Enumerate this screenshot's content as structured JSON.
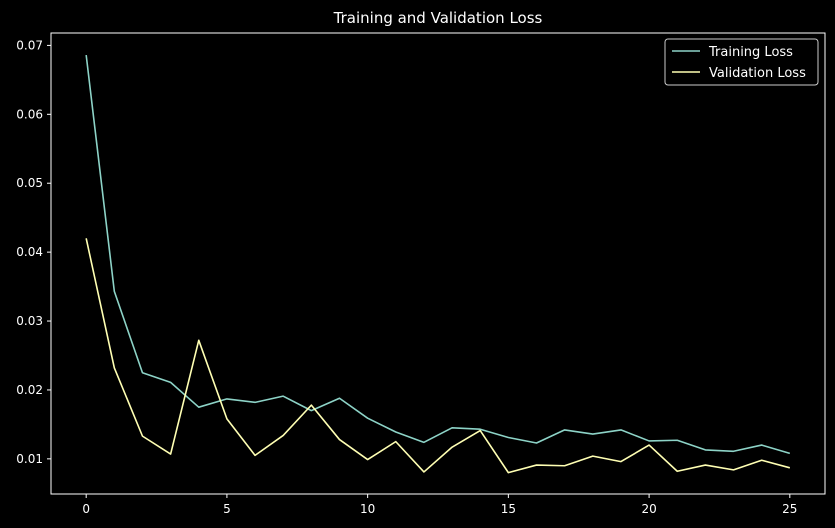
{
  "chart_data": {
    "type": "line",
    "title": "Training and Validation Loss",
    "xlabel": "",
    "ylabel": "",
    "xlim": [
      -1.25,
      26.25
    ],
    "ylim": [
      0.0049,
      0.0718
    ],
    "xticks": [
      0,
      5,
      10,
      15,
      20,
      25
    ],
    "yticks": [
      0.01,
      0.02,
      0.03,
      0.04,
      0.05,
      0.06,
      0.07
    ],
    "grid": false,
    "legend": "top-right",
    "x": [
      0,
      1,
      2,
      3,
      4,
      5,
      6,
      7,
      8,
      9,
      10,
      11,
      12,
      13,
      14,
      15,
      16,
      17,
      18,
      19,
      20,
      21,
      22,
      23,
      24,
      25
    ],
    "series": [
      {
        "name": "Training Loss",
        "color": "#8dd3c7",
        "values": [
          0.0686,
          0.0343,
          0.0225,
          0.0211,
          0.0175,
          0.0187,
          0.0182,
          0.0191,
          0.017,
          0.0188,
          0.0159,
          0.0139,
          0.0124,
          0.0145,
          0.0143,
          0.0131,
          0.0123,
          0.0142,
          0.0136,
          0.0142,
          0.0126,
          0.0127,
          0.0113,
          0.0111,
          0.012,
          0.0108
        ]
      },
      {
        "name": "Validation Loss",
        "color": "#ffffb3",
        "values": [
          0.042,
          0.0232,
          0.0133,
          0.0107,
          0.0272,
          0.0158,
          0.0105,
          0.0134,
          0.0178,
          0.0128,
          0.0099,
          0.0125,
          0.0081,
          0.0117,
          0.0141,
          0.008,
          0.0091,
          0.009,
          0.0104,
          0.0096,
          0.012,
          0.0082,
          0.0091,
          0.0084,
          0.0098,
          0.0087
        ]
      }
    ]
  }
}
